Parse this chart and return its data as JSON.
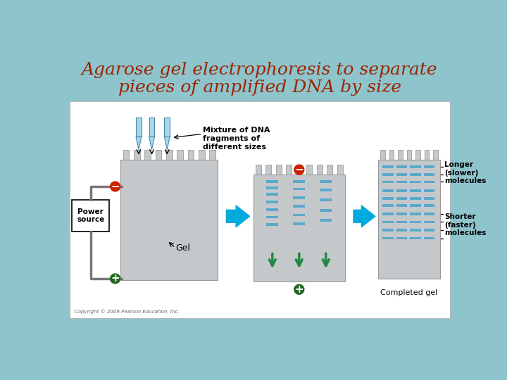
{
  "title_line1": "Agarose gel electrophoresis to separate",
  "title_line2": "pieces of amplified DNA by size",
  "title_color": "#9B2500",
  "title_fontsize": 18,
  "background_color": "#8EC4CC",
  "figsize": [
    7.2,
    5.4
  ],
  "dpi": 100,
  "labels": {
    "mixture": "Mixture of DNA\nfragments of\ndifferent sizes",
    "power_source": "Power\nsource",
    "gel": "Gel",
    "longer": "Longer\n(slower)\nmolecules",
    "shorter": "Shorter\n(faster)\nmolecules",
    "completed_gel": "Completed gel",
    "copyright": "Copyright © 2009 Pearson Education, Inc."
  },
  "gel_color": "#C5C8CB",
  "gel_edge_color": "#999999",
  "band_color": "#5BA8CC",
  "arrow_color": "#00AADD",
  "electrode_neg_color": "#CC2200",
  "electrode_pos_color": "#226622",
  "wire_color": "#777777",
  "panel_bg": "#FFFFFF",
  "panel_edge": "#BBBBBB"
}
